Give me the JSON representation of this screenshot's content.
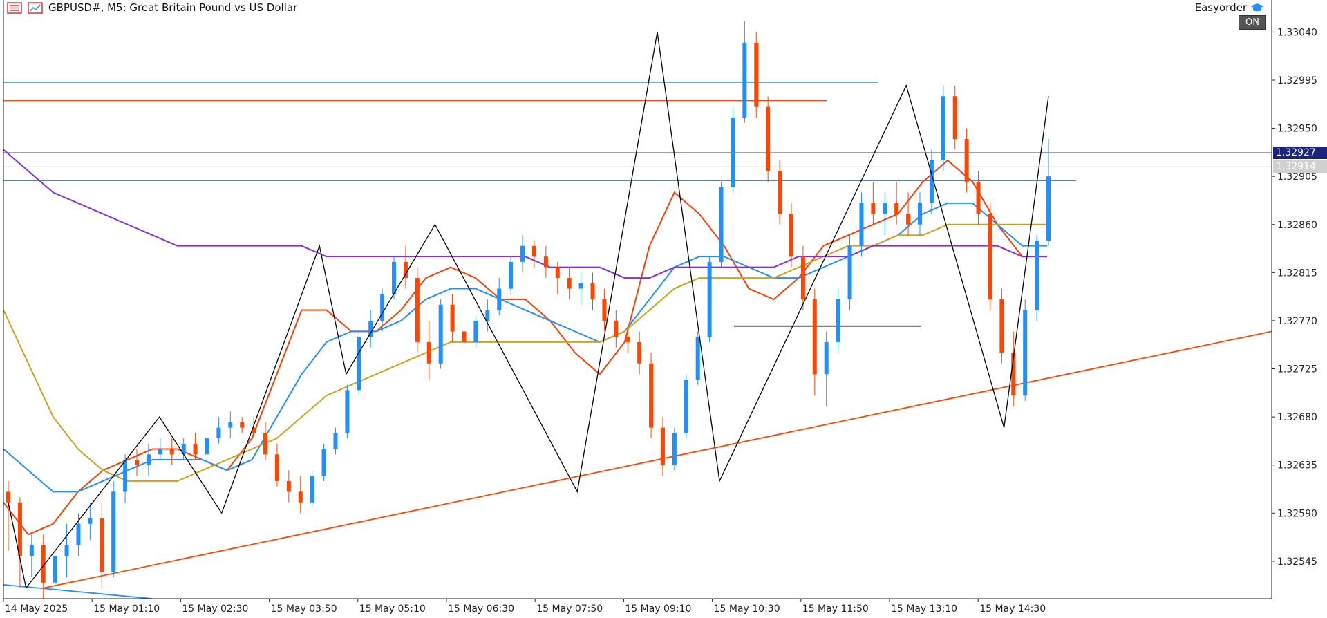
{
  "header": {
    "symbol_label": "GBPUSD#, M5:  Great Britain Pound vs US Dollar",
    "menu_icon": "list-menu-icon",
    "chart_icon": "chart-window-icon"
  },
  "expert": {
    "name": "Easyorder",
    "icon": "graduation-cap-icon",
    "toggle_label": "ON"
  },
  "price_axis": {
    "labels": [
      "1.33040",
      "1.32995",
      "1.32950",
      "1.32905",
      "1.32860",
      "1.32815",
      "1.32770",
      "1.32725",
      "1.32680",
      "1.32635",
      "1.32590",
      "1.32545"
    ],
    "current_bid_label": "1.32927",
    "current_ask_label": "1.32914"
  },
  "time_axis": {
    "labels": [
      "14 May 2025",
      "15 May 01:10",
      "15 May 02:30",
      "15 May 03:50",
      "15 May 05:10",
      "15 May 06:30",
      "15 May 07:50",
      "15 May 09:10",
      "15 May 10:30",
      "15 May 11:50",
      "15 May 13:10",
      "15 May 14:30"
    ]
  },
  "colors": {
    "bull": "#1e90ff",
    "bear": "#ff4500",
    "ma_fast": "#ff3d00",
    "ma_mid": "#1e90ff",
    "ma_slow": "#d4a017",
    "ma_long": "#8a2be2",
    "zigzag": "#000000",
    "trendline": "#ff4500",
    "hline_blue": "#1e90ff",
    "hline_red": "#ff4500",
    "hline_price": "#3a3a8c"
  },
  "chart_data": {
    "type": "candlestick",
    "symbol": "GBPUSD#",
    "timeframe": "M5",
    "ylim": [
      1.3251,
      1.3307
    ],
    "horizontal_lines": [
      {
        "price": 1.32993,
        "color": "blue"
      },
      {
        "price": 1.32976,
        "color": "red"
      },
      {
        "price": 1.32927,
        "color": "slate"
      },
      {
        "price": 1.32901,
        "color": "blue"
      }
    ],
    "ohlc": [
      [
        1.3261,
        1.3262,
        1.32555,
        1.326
      ],
      [
        1.326,
        1.32605,
        1.3252,
        1.3255
      ],
      [
        1.3255,
        1.3257,
        1.3253,
        1.3256
      ],
      [
        1.3256,
        1.3257,
        1.3251,
        1.32525
      ],
      [
        1.32525,
        1.3256,
        1.3252,
        1.3255
      ],
      [
        1.3255,
        1.3258,
        1.3253,
        1.3256
      ],
      [
        1.3256,
        1.3259,
        1.3255,
        1.3258
      ],
      [
        1.3258,
        1.326,
        1.32565,
        1.32585
      ],
      [
        1.32585,
        1.326,
        1.3252,
        1.32535
      ],
      [
        1.32535,
        1.3262,
        1.3253,
        1.3261
      ],
      [
        1.3261,
        1.32645,
        1.326,
        1.3264
      ],
      [
        1.3264,
        1.3265,
        1.32625,
        1.32635
      ],
      [
        1.32635,
        1.32655,
        1.32625,
        1.32645
      ],
      [
        1.32645,
        1.3266,
        1.3264,
        1.3265
      ],
      [
        1.3265,
        1.3266,
        1.32635,
        1.32645
      ],
      [
        1.32645,
        1.3266,
        1.3264,
        1.32655
      ],
      [
        1.32655,
        1.32665,
        1.3264,
        1.32645
      ],
      [
        1.32645,
        1.32665,
        1.3264,
        1.3266
      ],
      [
        1.3266,
        1.3268,
        1.32655,
        1.3267
      ],
      [
        1.3267,
        1.32685,
        1.3266,
        1.32675
      ],
      [
        1.32675,
        1.3268,
        1.32665,
        1.3267
      ],
      [
        1.3267,
        1.3268,
        1.3266,
        1.32665
      ],
      [
        1.32665,
        1.32675,
        1.3264,
        1.32645
      ],
      [
        1.32645,
        1.32655,
        1.32615,
        1.3262
      ],
      [
        1.3262,
        1.3263,
        1.326,
        1.3261
      ],
      [
        1.3261,
        1.32625,
        1.3259,
        1.326
      ],
      [
        1.326,
        1.3263,
        1.32595,
        1.32625
      ],
      [
        1.32625,
        1.32655,
        1.3262,
        1.3265
      ],
      [
        1.3265,
        1.3267,
        1.32645,
        1.32665
      ],
      [
        1.32665,
        1.3271,
        1.3266,
        1.32705
      ],
      [
        1.32705,
        1.3276,
        1.327,
        1.32755
      ],
      [
        1.32755,
        1.3278,
        1.32745,
        1.3277
      ],
      [
        1.3277,
        1.328,
        1.3276,
        1.32795
      ],
      [
        1.32795,
        1.3283,
        1.3279,
        1.32825
      ],
      [
        1.32825,
        1.3284,
        1.328,
        1.3281
      ],
      [
        1.3281,
        1.3282,
        1.3274,
        1.3275
      ],
      [
        1.3275,
        1.3277,
        1.32715,
        1.3273
      ],
      [
        1.3273,
        1.3279,
        1.32725,
        1.32785
      ],
      [
        1.32785,
        1.32795,
        1.3275,
        1.3276
      ],
      [
        1.3276,
        1.3277,
        1.3274,
        1.3275
      ],
      [
        1.3275,
        1.32775,
        1.32745,
        1.3277
      ],
      [
        1.3277,
        1.3279,
        1.3276,
        1.3278
      ],
      [
        1.3278,
        1.3281,
        1.32775,
        1.328
      ],
      [
        1.328,
        1.3283,
        1.32795,
        1.32825
      ],
      [
        1.32825,
        1.3285,
        1.32815,
        1.3284
      ],
      [
        1.3284,
        1.32845,
        1.3282,
        1.3283
      ],
      [
        1.3283,
        1.3284,
        1.3281,
        1.3282
      ],
      [
        1.3282,
        1.32825,
        1.32795,
        1.3281
      ],
      [
        1.3281,
        1.3282,
        1.3279,
        1.328
      ],
      [
        1.328,
        1.32815,
        1.32785,
        1.32805
      ],
      [
        1.32805,
        1.32815,
        1.3278,
        1.3279
      ],
      [
        1.3279,
        1.328,
        1.3276,
        1.3277
      ],
      [
        1.3277,
        1.3278,
        1.32745,
        1.32755
      ],
      [
        1.32755,
        1.32765,
        1.3274,
        1.3275
      ],
      [
        1.3275,
        1.3276,
        1.3272,
        1.3273
      ],
      [
        1.3273,
        1.3274,
        1.3266,
        1.3267
      ],
      [
        1.3267,
        1.3268,
        1.32625,
        1.32635
      ],
      [
        1.32635,
        1.3267,
        1.3263,
        1.32665
      ],
      [
        1.32665,
        1.3272,
        1.3266,
        1.32715
      ],
      [
        1.32715,
        1.3276,
        1.3271,
        1.32755
      ],
      [
        1.32755,
        1.3283,
        1.3275,
        1.32825
      ],
      [
        1.32825,
        1.329,
        1.3282,
        1.32895
      ],
      [
        1.32895,
        1.3297,
        1.3289,
        1.3296
      ],
      [
        1.3296,
        1.3305,
        1.32955,
        1.3303
      ],
      [
        1.3303,
        1.3304,
        1.3296,
        1.3297
      ],
      [
        1.3297,
        1.3298,
        1.329,
        1.3291
      ],
      [
        1.3291,
        1.3292,
        1.3286,
        1.3287
      ],
      [
        1.3287,
        1.3288,
        1.3282,
        1.3283
      ],
      [
        1.3283,
        1.3284,
        1.3278,
        1.3279
      ],
      [
        1.3279,
        1.328,
        1.327,
        1.3272
      ],
      [
        1.3272,
        1.3276,
        1.3269,
        1.3275
      ],
      [
        1.3275,
        1.328,
        1.3274,
        1.3279
      ],
      [
        1.3279,
        1.3285,
        1.3278,
        1.3284
      ],
      [
        1.3284,
        1.3289,
        1.3283,
        1.3288
      ],
      [
        1.3288,
        1.329,
        1.3286,
        1.3287
      ],
      [
        1.3287,
        1.3289,
        1.3285,
        1.3288
      ],
      [
        1.3288,
        1.329,
        1.3286,
        1.3287
      ],
      [
        1.3287,
        1.3289,
        1.3285,
        1.3286
      ],
      [
        1.3286,
        1.3289,
        1.3285,
        1.3288
      ],
      [
        1.3288,
        1.3293,
        1.3287,
        1.3292
      ],
      [
        1.3292,
        1.3299,
        1.3291,
        1.3298
      ],
      [
        1.3298,
        1.3299,
        1.3293,
        1.3294
      ],
      [
        1.3294,
        1.3295,
        1.3289,
        1.329
      ],
      [
        1.329,
        1.3291,
        1.3286,
        1.3287
      ],
      [
        1.3287,
        1.3288,
        1.3278,
        1.3279
      ],
      [
        1.3279,
        1.328,
        1.3273,
        1.3274
      ],
      [
        1.3274,
        1.3276,
        1.3269,
        1.327
      ],
      [
        1.327,
        1.3279,
        1.32695,
        1.3278
      ],
      [
        1.3278,
        1.3285,
        1.3277,
        1.32845
      ],
      [
        1.32845,
        1.3294,
        1.3284,
        1.32905
      ]
    ],
    "moving_averages": [
      {
        "name": "",
        "color": "red",
        "values": [
          1.326,
          1.3257,
          1.3258,
          1.3261,
          1.3263,
          1.3264,
          1.3265,
          1.3265,
          1.3264,
          1.3263,
          1.3266,
          1.3272,
          1.3278,
          1.3278,
          1.3276,
          1.3276,
          1.3278,
          1.3281,
          1.3282,
          1.3281,
          1.3279,
          1.3279,
          1.3277,
          1.3274,
          1.3272,
          1.3275,
          1.3284,
          1.3289,
          1.3287,
          1.3284,
          1.328,
          1.3279,
          1.3281,
          1.3284,
          1.3285,
          1.3286,
          1.3287,
          1.329,
          1.3292,
          1.329,
          1.3286,
          1.3283,
          1.3283
        ]
      },
      {
        "name": "",
        "color": "blue",
        "values": [
          1.3265,
          1.3263,
          1.3261,
          1.3261,
          1.3262,
          1.3263,
          1.3264,
          1.3264,
          1.3264,
          1.3263,
          1.3264,
          1.3268,
          1.3272,
          1.3275,
          1.3276,
          1.3276,
          1.3277,
          1.3279,
          1.328,
          1.328,
          1.3279,
          1.3278,
          1.3277,
          1.3276,
          1.3275,
          1.3276,
          1.3279,
          1.3282,
          1.3283,
          1.3283,
          1.3282,
          1.3281,
          1.3281,
          1.3282,
          1.3283,
          1.3284,
          1.3285,
          1.3287,
          1.3288,
          1.3288,
          1.3286,
          1.3284,
          1.3284
        ]
      },
      {
        "name": "",
        "color": "gold",
        "values": [
          1.3278,
          1.3273,
          1.3268,
          1.3265,
          1.3263,
          1.3262,
          1.3262,
          1.3262,
          1.3263,
          1.3264,
          1.3265,
          1.3266,
          1.3268,
          1.327,
          1.3271,
          1.3272,
          1.3273,
          1.3274,
          1.3275,
          1.3275,
          1.3275,
          1.3275,
          1.3275,
          1.3275,
          1.3275,
          1.3276,
          1.3278,
          1.328,
          1.3281,
          1.3281,
          1.3281,
          1.3281,
          1.3282,
          1.3283,
          1.3284,
          1.3284,
          1.3285,
          1.3285,
          1.3286,
          1.3286,
          1.3286,
          1.3286,
          1.3286
        ]
      },
      {
        "name": "",
        "color": "violet",
        "values": [
          1.3293,
          1.3291,
          1.3289,
          1.3288,
          1.3287,
          1.3286,
          1.3285,
          1.3284,
          1.3284,
          1.3284,
          1.3284,
          1.3284,
          1.3284,
          1.3283,
          1.3283,
          1.3283,
          1.3283,
          1.3283,
          1.3283,
          1.3283,
          1.3283,
          1.3283,
          1.3282,
          1.3282,
          1.3282,
          1.3281,
          1.3281,
          1.3282,
          1.3282,
          1.3282,
          1.3282,
          1.3282,
          1.3283,
          1.3283,
          1.3283,
          1.3284,
          1.3284,
          1.3284,
          1.3284,
          1.3284,
          1.3284,
          1.3283,
          1.3283
        ]
      }
    ],
    "zigzag": [
      [
        0,
        1.326
      ],
      [
        2,
        1.3252
      ],
      [
        17,
        1.3268
      ],
      [
        24,
        1.3259
      ],
      [
        35,
        1.3284
      ],
      [
        38,
        1.3272
      ],
      [
        48,
        1.3286
      ],
      [
        64,
        1.3261
      ],
      [
        73,
        1.3304
      ],
      [
        80,
        1.3262
      ],
      [
        101,
        1.3299
      ],
      [
        112,
        1.3267
      ],
      [
        117,
        1.3298
      ]
    ],
    "trendlines": [
      {
        "from": [
          2,
          1.3252
        ],
        "to": [
          140,
          1.3276
        ],
        "color": "red"
      },
      {
        "from": [
          0,
          1.32523
        ],
        "to": [
          14,
          1.3251
        ],
        "color": "blue"
      }
    ],
    "segment_line": {
      "from_index": 82,
      "to_index": 105,
      "price": 1.32765
    }
  }
}
